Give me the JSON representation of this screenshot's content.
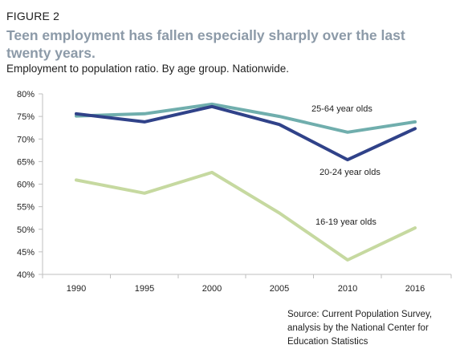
{
  "figure_label": "FIGURE 2",
  "title": "Teen employment has fallen especially sharply over the last twenty years.",
  "subtitle": "Employment to population ratio. By age group. Nationwide.",
  "source": "Source: Current Population Survey, analysis by the National Center for Education Statistics",
  "chart_data": {
    "type": "line",
    "x": [
      "1990",
      "1995",
      "2000",
      "2005",
      "2010",
      "2016"
    ],
    "y_ticks": [
      "40%",
      "45%",
      "50%",
      "55%",
      "60%",
      "65%",
      "70%",
      "75%",
      "80%"
    ],
    "ylim": [
      40,
      80
    ],
    "grid": false,
    "legend": "direct labels",
    "series": [
      {
        "name": "25-64 year olds",
        "values": [
          75.1,
          75.6,
          77.7,
          75.0,
          71.5,
          73.8
        ],
        "color": "#70aead"
      },
      {
        "name": "20-24 year olds",
        "values": [
          75.6,
          73.8,
          77.2,
          73.2,
          65.4,
          72.3
        ],
        "color": "#304289"
      },
      {
        "name": "16-19 year olds",
        "values": [
          60.9,
          58.0,
          62.6,
          53.6,
          43.2,
          50.3
        ],
        "color": "#c6d9a0"
      }
    ]
  }
}
